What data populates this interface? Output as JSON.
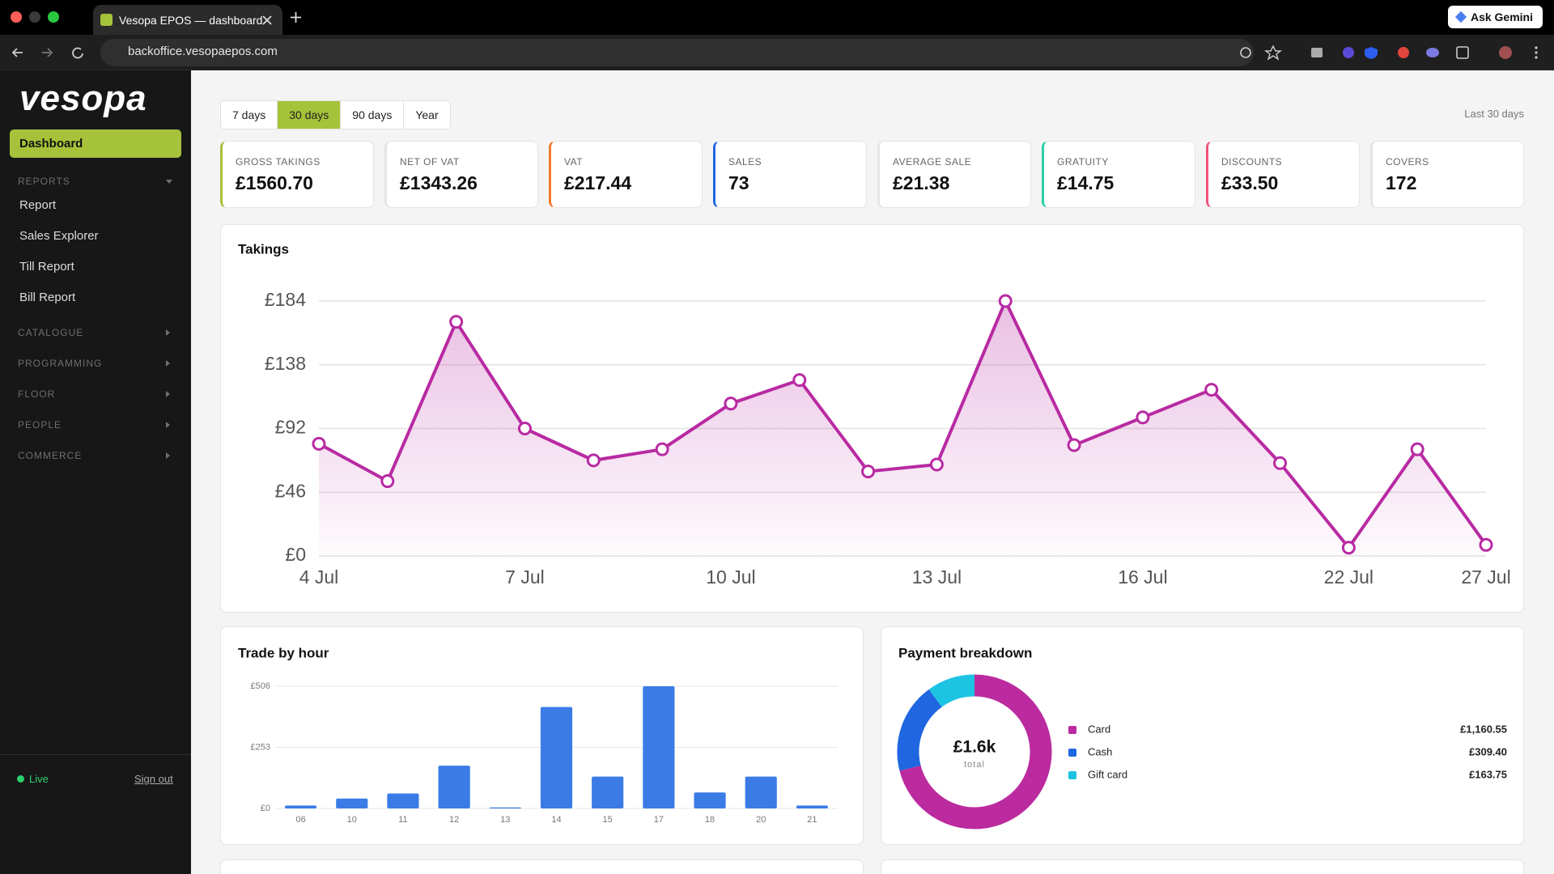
{
  "browser": {
    "tab_title": "Vesopa EPOS — dashboard",
    "url": "backoffice.vesopaepos.com",
    "assistant": "Ask Gemini"
  },
  "sidebar": {
    "logo": "vesopa",
    "active": "Dashboard",
    "sections": [
      {
        "title": "REPORTS",
        "items": [
          "Report",
          "Sales Explorer",
          "Till Report",
          "Bill Report"
        ]
      },
      {
        "title": "CATALOGUE"
      },
      {
        "title": "PROGRAMMING"
      },
      {
        "title": "FLOOR"
      },
      {
        "title": "PEOPLE"
      },
      {
        "title": "COMMERCE"
      }
    ],
    "status": "Live",
    "sign_out": "Sign out"
  },
  "range": {
    "options": [
      "7 days",
      "30 days",
      "90 days",
      "Year"
    ],
    "active": 1,
    "caption": "Last 30 days"
  },
  "kpis": [
    {
      "label": "GROSS TAKINGS",
      "value": "£1560.70",
      "color": "#a6c23a"
    },
    {
      "label": "NET OF VAT",
      "value": "£1343.26"
    },
    {
      "label": "VAT",
      "value": "£217.44",
      "color": "#f07b2c"
    },
    {
      "label": "SALES",
      "value": "73",
      "color": "#1f66e0"
    },
    {
      "label": "AVERAGE SALE",
      "value": "£21.38"
    },
    {
      "label": "GRATUITY",
      "value": "£14.75",
      "color": "#27cfa5"
    },
    {
      "label": "DISCOUNTS",
      "value": "£33.50",
      "color": "#f0527c"
    },
    {
      "label": "COVERS",
      "value": "172"
    }
  ],
  "chart_data": [
    {
      "type": "line",
      "title": "Takings",
      "categories": [
        "4 Jul",
        null,
        null,
        "7 Jul",
        null,
        null,
        "10 Jul",
        null,
        null,
        "13 Jul",
        null,
        null,
        "16 Jul",
        null,
        null,
        "22 Jul",
        null,
        "27 Jul"
      ],
      "values": [
        81,
        54,
        169,
        92,
        69,
        77,
        110,
        127,
        61,
        66,
        184,
        80,
        100,
        120,
        67,
        6,
        77,
        8
      ],
      "color": "#b82aa2",
      "ylim": [
        0,
        184
      ],
      "yticks": [
        {
          "value": 0,
          "label": "£0"
        },
        {
          "value": 46,
          "label": "£46"
        },
        {
          "value": 92,
          "label": "£92"
        },
        {
          "value": 138,
          "label": "£138"
        },
        {
          "value": 184,
          "label": "£184"
        }
      ],
      "grid": true
    },
    {
      "type": "bar",
      "title": "Trade by hour",
      "categories": [
        "06",
        "10",
        "11",
        "12",
        "13",
        "14",
        "15",
        "17",
        "18",
        "20",
        "21"
      ],
      "values": [
        12,
        41,
        62,
        177,
        4,
        420,
        132,
        506,
        66,
        132,
        12
      ],
      "color": "#3a7be6",
      "ylim": [
        0,
        506
      ],
      "yticks": [
        {
          "value": 0,
          "label": "£0"
        },
        {
          "value": 253,
          "label": "£253"
        },
        {
          "value": 506,
          "label": "£506"
        }
      ],
      "grid": true
    },
    {
      "type": "donut",
      "title": "Payment breakdown",
      "center_label": "£1.6k",
      "center_sublabel": "total",
      "categories": [
        "Card",
        "Cash",
        "Gift card"
      ],
      "values": [
        1160.55,
        309.4,
        163.75
      ],
      "value_labels": [
        "£1,160.55",
        "£309.40",
        "£163.75"
      ],
      "colors": [
        "#bb2a9e",
        "#1f66e0",
        "#1cc3e3"
      ]
    }
  ]
}
